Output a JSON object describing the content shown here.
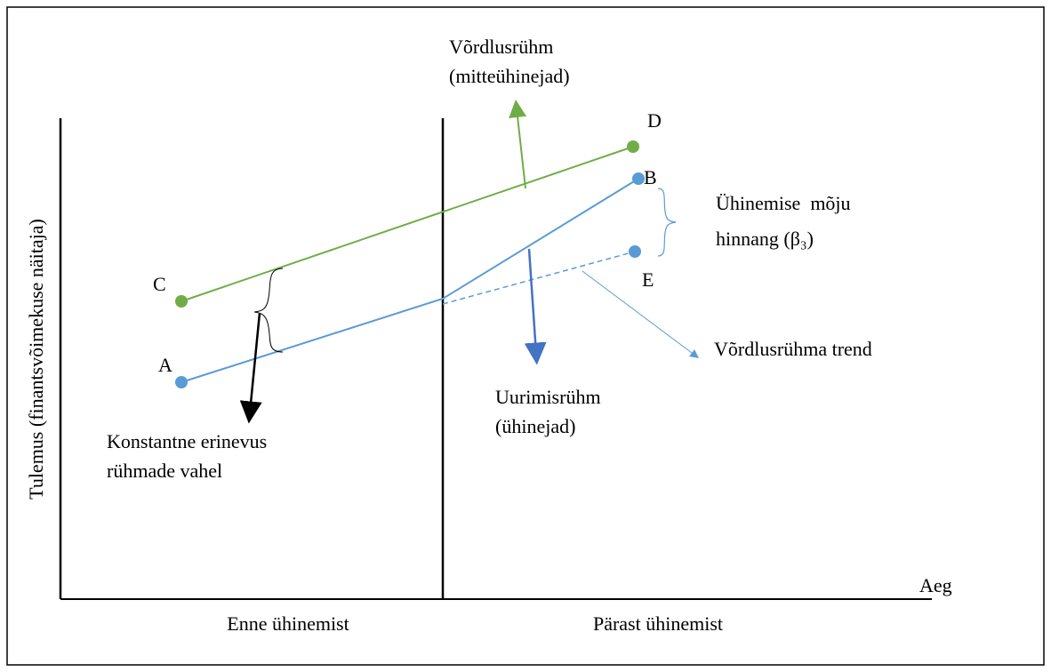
{
  "labels": {
    "comparison_title": "Võrdlusrühm",
    "comparison_sub": "(mitteühinejad)",
    "point_d": "D",
    "point_b": "B",
    "point_c": "C",
    "point_a": "A",
    "point_e": "E",
    "effect_1": "Ühinemise  mõju",
    "effect_2": "hinnang (β₃)",
    "constant_1": "Konstantne erinevus",
    "constant_2": "rühmade vahel",
    "treatment_title": "Uurimisrühm",
    "treatment_sub": "(ühinejad)",
    "trend": "Võrdlusrühma trend",
    "y_axis": "Tulemus (finantsvõimekuse näitaja)",
    "x_axis": "Aeg",
    "before": "Enne ühinemist",
    "after": "Pärast ühinemist"
  }
}
